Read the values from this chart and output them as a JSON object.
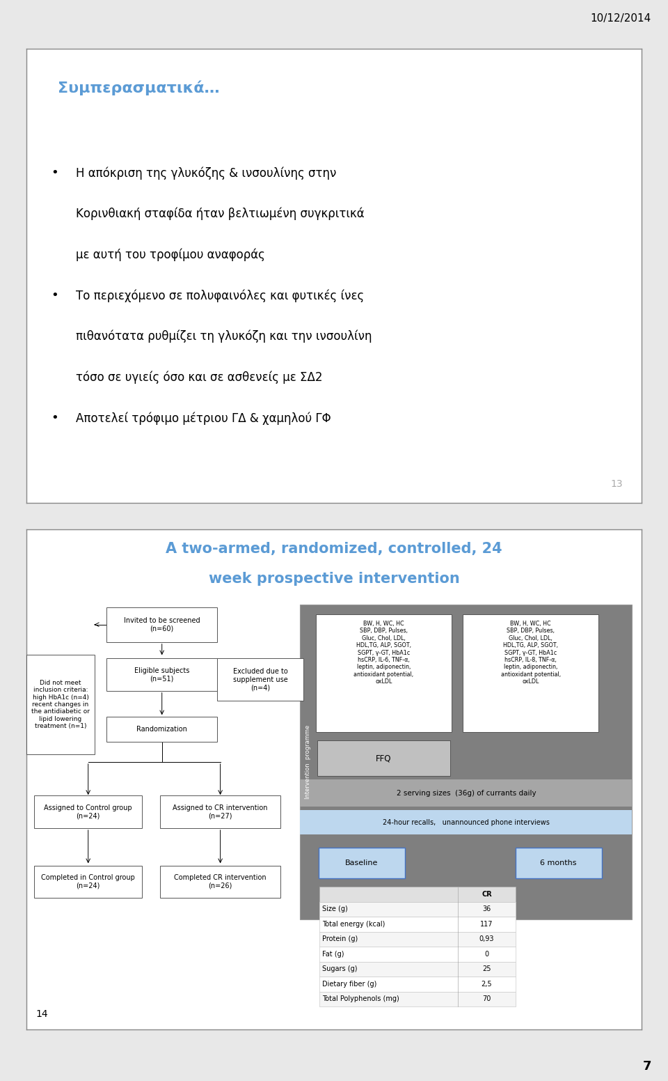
{
  "date_text": "10/12/2014",
  "page_number": "7",
  "bg_color": "#FFFFFF",
  "outer_bg": "#E8E8E8",
  "slide1": {
    "title": "Συμπερασματικά…",
    "title_color": "#5B9BD5",
    "bullet1_line1": "Η απόκριση της γλυκόζης & ινσουλίνης στην",
    "bullet1_line2": "Κορινθιακή σταφίδα ήταν βελτιωμένη συγκριτικά",
    "bullet1_line3": "με αυτή του τροφίμου αναφοράς",
    "bullet2_line1": "Το περιεχόμενο σε πολυφαινόλες και φυτικές ίνες",
    "bullet2_line2": "πιθανότατα ρυθμίζει τη γλυκόζη και την ινσουλίνη",
    "bullet2_line3": "τόσο σε υγιείς όσο και σε ασθενείς με ΣΔ2",
    "bullet3": "Αποτελεί τρόφιμο μέτριου ΓΔ & χαμηλού ΓΦ",
    "slide_number": "13",
    "border_color": "#888888"
  },
  "slide2": {
    "title_line1": "A two-armed, randomized, controlled, 24",
    "title_line2": "week prospective intervention",
    "title_color": "#5B9BD5",
    "slide_number": "14",
    "border_color": "#888888",
    "fc_box_invited": "Invited to be screened\n(n=60)",
    "fc_box_didnot": "Did not meet\ninclusion criteria:\nhigh HbA1c (n=4)\nrecent changes in\nthe antidiabetic or\nlipid lowering\ntreatment (n=1)",
    "fc_box_excluded": "Excluded due to\nsupplement use\n(n=4)",
    "fc_box_eligible": "Eligible subjects\n(n=51)",
    "fc_box_random": "Randomization",
    "fc_box_ctrl": "Assigned to Control group\n(n=24)",
    "fc_box_cr": "Assigned to CR intervention\n(n=27)",
    "fc_box_compc": "Completed in Control group\n(n=24)",
    "fc_box_compcr": "Completed CR intervention\n(n=26)",
    "rp_dark_color": "#7F7F7F",
    "rp_mid_color": "#A6A6A6",
    "rp_light_color": "#BDD7EE",
    "rp_programme": "Intervention  programme",
    "rp_left_text": "BW, H, WC, HC\nSBP, DBP, Pulses,\nGluc, Chol, LDL,\nHDL,TG, ALP, SGOT,\nSGPT, γ-GT, HbA1c\nhsCRP, IL-6, TNF-α,\nleptin, adiponectin,\nantioxidant potential,\noxLDL",
    "rp_right_text": "BW, H, WC, HC\nSBP, DBP, Pulses,\nGluc, Chol, LDL,\nHDL,TG, ALP, SGOT,\nSGPT, γ-GT, HbA1c\nhsCRP, IL-8, TNF-α,\nleptin, adiponectin,\nantioxidant potential,\noxLDL",
    "rp_ffq": "FFQ",
    "rp_serving": "2 serving sizes  (36g) of currants daily",
    "rp_recalls": "24-hour recalls,   unannounced phone interviews",
    "rp_baseline": "Baseline",
    "rp_months": "6 months",
    "tbl_headers": [
      "",
      "CR"
    ],
    "tbl_rows": [
      [
        "Size (g)",
        "36"
      ],
      [
        "Total energy (kcal)",
        "117"
      ],
      [
        "Protein (g)",
        "0,93"
      ],
      [
        "Fat (g)",
        "0"
      ],
      [
        "Sugars (g)",
        "25"
      ],
      [
        "Dietary fiber (g)",
        "2,5"
      ],
      [
        "Total Polyphenols (mg)",
        "70"
      ]
    ]
  }
}
